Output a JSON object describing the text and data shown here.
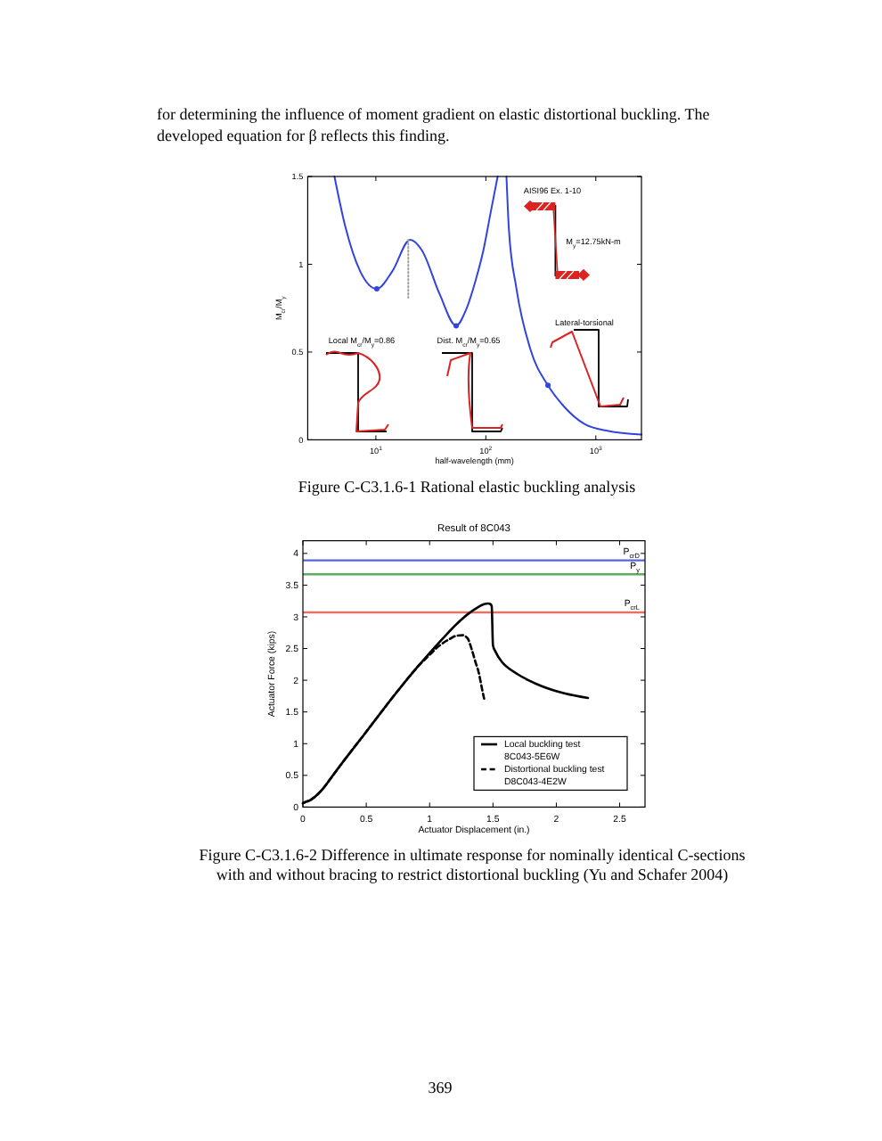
{
  "chart_data": [
    {
      "type": "line",
      "xlabel": "half-wavelength (mm)",
      "ylabel": "M$_{cr}$/M$_{y}$",
      "log": "x",
      "xlim": [
        2.4,
        2600
      ],
      "xticks": [
        {
          "value": 10,
          "label": "10$^{1}$"
        },
        {
          "value": 100,
          "label": "10$^{2}$"
        },
        {
          "value": 1000,
          "label": "10$^{3}$"
        }
      ],
      "ylim": [
        0,
        1.5
      ],
      "yticks": [
        0,
        0.5,
        1,
        1.5
      ],
      "series": [
        {
          "color": "#3344dd",
          "x": [
            4.2,
            5.2,
            7.2,
            10.2,
            14.1,
            20.5,
            26.2,
            38,
            53.7,
            66,
            80,
            95,
            111,
            128,
            140,
            154,
            162,
            190,
            253,
            367,
            513,
            789,
            1300,
            2600
          ],
          "values": [
            1.5,
            1.23,
            0.96,
            0.86,
            0.96,
            1.14,
            1.08,
            0.83,
            0.65,
            0.74,
            0.9,
            1.08,
            1.3,
            1.5,
            null,
            1.5,
            1.2,
            0.86,
            0.52,
            0.31,
            0.19,
            0.09,
            0.05,
            0.03
          ]
        },
        {
          "type": "scatter",
          "color": "#3344dd",
          "marker": "circle",
          "x": [
            10.2,
            53.7,
            367
          ],
          "values": [
            0.86,
            0.65,
            0.31
          ]
        },
        {
          "color": "#a0a0a0",
          "line_style": "dotted",
          "x": [
            19.7,
            19.7
          ],
          "values": [
            1.14,
            0.81
          ]
        }
      ],
      "annotations": [
        "for determining the influence of moment gradient on elastic distortional buckling. The\ndeveloped equation for β reflects this finding.",
        "AISI96 Ex. 1-10",
        "M$_{y}$=12.75kN-m",
        "Local M$_{cr}$/M$_{y}$=0.86",
        "Dist. M$_{cr}$/M$_{y}$=0.65",
        "Lateral-torsional",
        "Figure C-C3.1.6-1 Rational elastic buckling analysis"
      ]
    },
    {
      "type": "line",
      "title": "Result of 8C043",
      "xlabel": "Actuator Displacement (in.)",
      "ylabel": "Actuator Force (kips)",
      "xlim": [
        0,
        2.7
      ],
      "xticks": [
        0,
        0.5,
        1,
        1.5,
        2,
        2.5
      ],
      "ylim": [
        0,
        4.2
      ],
      "yticks": [
        0,
        0.5,
        1,
        1.5,
        2,
        2.5,
        3,
        3.5,
        4
      ],
      "legend": "bottom right",
      "series": [
        {
          "name": "Local buckling test\n8C043-5E6W",
          "color": "#000000",
          "x": [
            0,
            0.02,
            0.05,
            0.1,
            0.15,
            0.2,
            0.3,
            0.4,
            0.47,
            0.6,
            0.7,
            0.8,
            0.9,
            1.0,
            1.1,
            1.2,
            1.3,
            1.38,
            1.43,
            1.46,
            1.48,
            1.49,
            1.5,
            1.52,
            1.57,
            1.63,
            1.69,
            1.78,
            1.88,
            2.07,
            2.25
          ],
          "values": [
            0.06,
            0.08,
            0.1,
            0.17,
            0.27,
            0.4,
            0.67,
            0.93,
            1.11,
            1.45,
            1.71,
            1.96,
            2.2,
            2.43,
            2.65,
            2.86,
            3.04,
            3.15,
            3.2,
            3.21,
            3.2,
            3.17,
            2.55,
            2.45,
            2.29,
            2.18,
            2.1,
            2.0,
            1.91,
            1.79,
            1.72
          ]
        },
        {
          "name": "Distortional buckling test\nD8C043-4E2W",
          "color": "#000000",
          "line_style": "dashed",
          "x": [
            0,
            0.02,
            0.05,
            0.1,
            0.15,
            0.2,
            0.3,
            0.4,
            0.47,
            0.6,
            0.7,
            0.8,
            0.9,
            1.0,
            1.08,
            1.15,
            1.21,
            1.26,
            1.3,
            1.33,
            1.36,
            1.39,
            1.41,
            1.43
          ],
          "values": [
            0.06,
            0.08,
            0.1,
            0.17,
            0.27,
            0.4,
            0.67,
            0.93,
            1.11,
            1.45,
            1.71,
            1.96,
            2.2,
            2.4,
            2.55,
            2.64,
            2.7,
            2.71,
            2.66,
            2.5,
            2.3,
            2.1,
            1.9,
            1.71
          ]
        }
      ],
      "ref_lines": [
        {
          "axis": "y",
          "value": 3.89,
          "label": "P$_{crD}$",
          "color": "#5566dd"
        },
        {
          "axis": "y",
          "value": 3.67,
          "label": "P$_{y}$",
          "color": "#5fae5f"
        },
        {
          "axis": "y",
          "value": 3.07,
          "label": "P$_{crL}$",
          "color": "#e5735f"
        }
      ],
      "annotations": [
        "Figure C-C3.1.6-2 Difference in ultimate response for nominally identical C-sections\nwith and without bracing to restrict distortional buckling (Yu and Schafer 2004)",
        "369"
      ]
    }
  ]
}
